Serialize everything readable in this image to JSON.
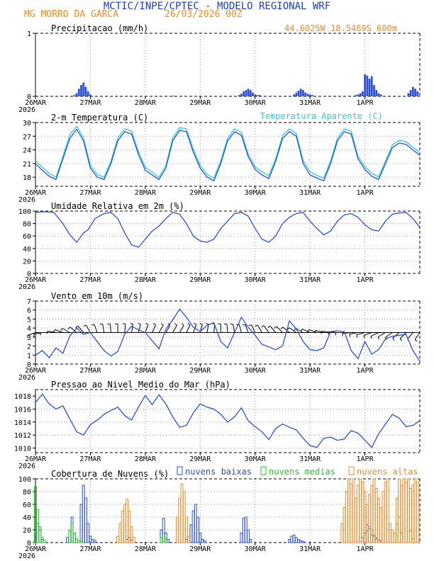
{
  "header": {
    "title": "MCTIC/INPE/CPTEC - MODELO REGIONAL WRF",
    "station": "MG MORRO DA GARCA",
    "run": "26/03/2026 00Z",
    "coords": "44.6025W 18.5469S 600m"
  },
  "colors": {
    "title": "#1a3ccf",
    "orange": "#f08a24",
    "blue": "#2a4fe0",
    "cyan": "#2ad0d0",
    "green": "#22cc22",
    "black": "#000000",
    "grid": "#999999"
  },
  "time_axis": {
    "first_label_year": "2026",
    "tick_labels": [
      "26MAR",
      "27MAR",
      "28MAR",
      "29MAR",
      "30MAR",
      "31MAR",
      "1APR"
    ],
    "range_hours": [
      0,
      168
    ]
  },
  "chart_data": [
    {
      "id": "precip",
      "type": "bar",
      "title": "Precipitacao (mm/h)",
      "ylim": [
        0,
        1
      ],
      "ytick_labels": [
        "0",
        "1"
      ],
      "x_hours": [
        17,
        18,
        19,
        20,
        21,
        22,
        23,
        24,
        60,
        61,
        89,
        90,
        91,
        92,
        93,
        94,
        95,
        96,
        97,
        98,
        113,
        114,
        115,
        116,
        117,
        118,
        119,
        120,
        121,
        140,
        141,
        142,
        143,
        144,
        145,
        146,
        147,
        148,
        149,
        150,
        151,
        163,
        164,
        165,
        166,
        167
      ],
      "values": [
        0.02,
        0.05,
        0.12,
        0.18,
        0.22,
        0.15,
        0.08,
        0.03,
        0.01,
        0.01,
        0.02,
        0.04,
        0.08,
        0.1,
        0.12,
        0.1,
        0.06,
        0.03,
        0.02,
        0.02,
        0.03,
        0.06,
        0.09,
        0.12,
        0.1,
        0.06,
        0.04,
        0.03,
        0.02,
        0.02,
        0.03,
        0.05,
        0.08,
        0.35,
        0.33,
        0.28,
        0.32,
        0.18,
        0.1,
        0.05,
        0.03,
        0.05,
        0.1,
        0.15,
        0.12,
        0.08
      ]
    },
    {
      "id": "temperature",
      "type": "line",
      "title": "2-m Temperatura (C)",
      "ylim": [
        16,
        30
      ],
      "ytick_labels": [
        "18",
        "21",
        "24",
        "27",
        "30"
      ],
      "series": [
        {
          "name": "2-m Temperatura (C)",
          "color": "#2a4fe0",
          "x_hours": [
            0,
            3,
            6,
            9,
            12,
            15,
            18,
            21,
            24,
            27,
            30,
            33,
            36,
            39,
            42,
            45,
            48,
            51,
            54,
            57,
            60,
            63,
            66,
            69,
            72,
            75,
            78,
            81,
            84,
            87,
            90,
            93,
            96,
            99,
            102,
            105,
            108,
            111,
            114,
            117,
            120,
            123,
            126,
            129,
            132,
            135,
            138,
            141,
            144,
            147,
            150,
            153,
            156,
            159,
            162,
            165,
            168
          ],
          "values": [
            21,
            19.5,
            18.2,
            17.5,
            22,
            26.5,
            28.5,
            26,
            20,
            18,
            17.5,
            21,
            26,
            28,
            27.5,
            23,
            19.5,
            18.5,
            17.5,
            20,
            26,
            28.3,
            28,
            23.5,
            20,
            18,
            17.2,
            21,
            26,
            28,
            27.2,
            22.5,
            19.7,
            18.5,
            17.7,
            21.5,
            26.5,
            28,
            27,
            21,
            18.5,
            17.8,
            17.2,
            21,
            26,
            28,
            27.5,
            22,
            19.7,
            18.2,
            17.5,
            21,
            24.5,
            25.5,
            25.2,
            24,
            22.8
          ]
        },
        {
          "name": "Temperatura Aparente (C)",
          "color": "#2ad0d0",
          "x_hours": [
            0,
            3,
            6,
            9,
            12,
            15,
            18,
            21,
            24,
            27,
            30,
            33,
            36,
            39,
            42,
            45,
            48,
            51,
            54,
            57,
            60,
            63,
            66,
            69,
            72,
            75,
            78,
            81,
            84,
            87,
            90,
            93,
            96,
            99,
            102,
            105,
            108,
            111,
            114,
            117,
            120,
            123,
            126,
            129,
            132,
            135,
            138,
            141,
            144,
            147,
            150,
            153,
            156,
            159,
            162,
            165,
            168
          ],
          "values": [
            21.6,
            20.2,
            18.8,
            18,
            22.6,
            27.3,
            29.2,
            26.6,
            20.6,
            18.6,
            18,
            21.6,
            26.6,
            28.6,
            28.1,
            23.6,
            20.2,
            19.1,
            18,
            20.6,
            26.6,
            28.9,
            28.6,
            24.2,
            20.6,
            18.6,
            17.8,
            21.6,
            26.6,
            28.6,
            27.8,
            23.1,
            20.3,
            19.2,
            18.3,
            22.1,
            27.1,
            28.6,
            27.6,
            21.6,
            19.2,
            18.4,
            17.8,
            21.6,
            26.6,
            28.6,
            28.1,
            22.6,
            20.3,
            18.8,
            18.1,
            21.6,
            25.1,
            26.1,
            25.8,
            24.6,
            23.4
          ]
        }
      ]
    },
    {
      "id": "humidity",
      "type": "line",
      "title": "Umidade Relativa em 2m (%)",
      "ylim": [
        0,
        100
      ],
      "ytick_labels": [
        "0",
        "20",
        "40",
        "60",
        "80",
        "100"
      ],
      "x_hours": [
        0,
        4,
        8,
        12,
        15,
        18,
        20,
        21,
        23,
        26,
        30,
        33,
        36,
        39,
        42,
        45,
        48,
        51,
        54,
        57,
        60,
        63,
        66,
        69,
        72,
        75,
        78,
        81,
        84,
        87,
        90,
        93,
        96,
        99,
        102,
        105,
        108,
        111,
        114,
        117,
        120,
        123,
        126,
        129,
        132,
        135,
        138,
        141,
        144,
        147,
        150,
        153,
        156,
        159,
        162,
        165,
        168
      ],
      "values": [
        98,
        99,
        98,
        80,
        62,
        50,
        60,
        65,
        70,
        88,
        96,
        98,
        88,
        65,
        46,
        42,
        55,
        68,
        76,
        88,
        98,
        95,
        80,
        60,
        52,
        50,
        55,
        72,
        84,
        96,
        98,
        92,
        72,
        55,
        50,
        60,
        80,
        90,
        96,
        98,
        84,
        72,
        62,
        68,
        84,
        94,
        96,
        90,
        78,
        70,
        68,
        84,
        95,
        97,
        98,
        88,
        74
      ]
    },
    {
      "id": "wind",
      "type": "line",
      "title": "Vento em 10m (m/s)",
      "ylim": [
        0,
        7
      ],
      "ytick_labels": [
        "0",
        "1",
        "2",
        "3",
        "4",
        "5",
        "6",
        "7"
      ],
      "reference_level": 3.5,
      "x_hours": [
        0,
        3,
        6,
        9,
        12,
        15,
        18,
        21,
        24,
        27,
        30,
        33,
        36,
        39,
        42,
        45,
        48,
        51,
        54,
        57,
        60,
        63,
        66,
        69,
        72,
        75,
        78,
        81,
        84,
        87,
        90,
        93,
        96,
        99,
        102,
        105,
        108,
        111,
        114,
        117,
        120,
        123,
        126,
        129,
        132,
        135,
        138,
        141,
        144,
        147,
        150,
        153,
        156,
        159,
        162,
        165,
        168
      ],
      "values": [
        1,
        1.5,
        0.7,
        1.8,
        1.2,
        3.1,
        4,
        3.3,
        3.5,
        2.5,
        1.5,
        0.9,
        1.4,
        3.3,
        4.2,
        3.8,
        3.5,
        2.6,
        1.7,
        3.9,
        4.9,
        6.1,
        5.2,
        4.1,
        3.6,
        4.3,
        4.6,
        2.5,
        1.8,
        3.5,
        5.2,
        4.1,
        3.2,
        2.2,
        1.9,
        1.6,
        2,
        4.8,
        3.9,
        2.5,
        1.6,
        1.5,
        1.8,
        3.6,
        3.7,
        3.6,
        1.5,
        0.6,
        2.5,
        1.1,
        1.6,
        2.8,
        3.1,
        3.2,
        3.3,
        1.5,
        0.3
      ],
      "barb_dirs_deg": [
        200,
        190,
        180,
        170,
        160,
        150,
        140,
        130,
        120,
        110,
        100,
        95,
        90,
        85,
        80,
        75,
        70,
        65,
        60,
        60,
        60,
        60,
        65,
        70,
        75,
        80,
        85,
        90,
        95,
        100,
        105,
        110,
        115,
        120,
        125,
        130,
        135,
        140,
        145,
        150,
        155,
        160,
        165,
        170,
        175,
        180,
        185,
        190,
        195,
        200,
        205,
        210,
        215,
        220,
        225,
        230,
        235
      ]
    },
    {
      "id": "pressure",
      "type": "line",
      "title": "Pressao ao Nivel Medio do Mar (hPa)",
      "ylim": [
        1009.3,
        1019
      ],
      "ytick_labels": [
        "1010",
        "1012",
        "1014",
        "1016",
        "1018"
      ],
      "x_hours": [
        0,
        3,
        6,
        9,
        12,
        15,
        18,
        21,
        24,
        27,
        30,
        33,
        36,
        39,
        42,
        45,
        48,
        51,
        54,
        57,
        60,
        63,
        66,
        69,
        72,
        75,
        78,
        81,
        84,
        87,
        90,
        93,
        96,
        99,
        102,
        105,
        108,
        111,
        114,
        117,
        120,
        123,
        126,
        129,
        132,
        135,
        138,
        141,
        144,
        147,
        150,
        153,
        156,
        159,
        162,
        165,
        168
      ],
      "values": [
        1017,
        1018.3,
        1016.8,
        1016,
        1016.5,
        1014.5,
        1012.5,
        1012,
        1013.6,
        1014.3,
        1015.2,
        1015.8,
        1016.3,
        1015,
        1014.3,
        1016.3,
        1018.1,
        1016.7,
        1018.2,
        1016.8,
        1014.8,
        1013.2,
        1013.5,
        1015.4,
        1016.8,
        1016.3,
        1016,
        1015.2,
        1014,
        1014.8,
        1016.2,
        1014.2,
        1013.3,
        1012.5,
        1011.3,
        1013,
        1013.7,
        1013.2,
        1012.8,
        1011.5,
        1010.4,
        1010.1,
        1011.5,
        1011.7,
        1011.2,
        1011.4,
        1012.7,
        1012.3,
        1011.2,
        1010.1,
        1012.2,
        1013.7,
        1015.2,
        1014.6,
        1013.3,
        1013.5,
        1014.2
      ]
    },
    {
      "id": "clouds",
      "type": "bar",
      "title": "Cobertura de Nuvens (%)",
      "ylim": [
        0,
        100
      ],
      "ytick_labels": [
        "0",
        "20",
        "40",
        "60",
        "80",
        "100"
      ],
      "series": [
        {
          "name": "nuvens baixas",
          "color": "#2a4fe0",
          "x_hours": [
            0,
            1,
            2,
            3,
            14,
            15,
            16,
            17,
            20,
            21,
            22,
            23,
            24,
            25,
            26,
            40,
            41,
            42,
            55,
            56,
            57,
            58,
            66,
            67,
            68,
            69,
            70,
            71,
            72,
            73,
            74,
            90,
            91,
            92,
            93,
            94,
            111,
            112,
            113,
            114,
            115,
            116,
            117,
            143,
            144,
            145,
            146,
            147,
            148,
            149,
            150,
            151
          ],
          "values": [
            10,
            30,
            20,
            5,
            8,
            20,
            40,
            15,
            60,
            90,
            70,
            30,
            10,
            5,
            3,
            5,
            8,
            4,
            20,
            38,
            15,
            5,
            5,
            10,
            28,
            50,
            60,
            40,
            15,
            5,
            3,
            15,
            38,
            40,
            20,
            5,
            5,
            10,
            12,
            8,
            5,
            3,
            2,
            8,
            15,
            28,
            22,
            12,
            10,
            6,
            4,
            3
          ]
        },
        {
          "name": "nuvens medias",
          "color": "#22cc22",
          "x_hours": [
            0,
            1,
            2,
            3,
            4,
            15,
            16,
            17,
            18,
            19,
            20,
            55,
            56,
            57,
            145,
            146,
            147,
            148,
            149,
            158,
            159,
            160,
            164,
            165
          ],
          "values": [
            88,
            52,
            25,
            8,
            3,
            20,
            30,
            15,
            6,
            3,
            2,
            8,
            14,
            6,
            18,
            25,
            20,
            12,
            8,
            30,
            40,
            15,
            18,
            6
          ]
        },
        {
          "name": "nuvens altas",
          "color": "#f08a24",
          "x_hours": [
            36,
            37,
            38,
            39,
            40,
            41,
            42,
            43,
            62,
            63,
            64,
            65,
            66,
            67,
            134,
            135,
            136,
            137,
            138,
            139,
            140,
            141,
            142,
            143,
            144,
            145,
            146,
            147,
            148,
            149,
            150,
            151,
            152,
            153,
            154,
            155,
            156,
            157,
            158,
            159,
            160,
            161,
            162,
            163,
            164,
            165,
            166,
            167
          ],
          "values": [
            10,
            30,
            50,
            60,
            68,
            50,
            25,
            8,
            40,
            70,
            92,
            80,
            40,
            10,
            30,
            55,
            80,
            100,
            92,
            100,
            70,
            90,
            100,
            95,
            80,
            60,
            75,
            90,
            100,
            85,
            70,
            55,
            80,
            95,
            100,
            30,
            20,
            15,
            70,
            100,
            90,
            100,
            95,
            100,
            85,
            90,
            100,
            95
          ]
        }
      ]
    }
  ]
}
